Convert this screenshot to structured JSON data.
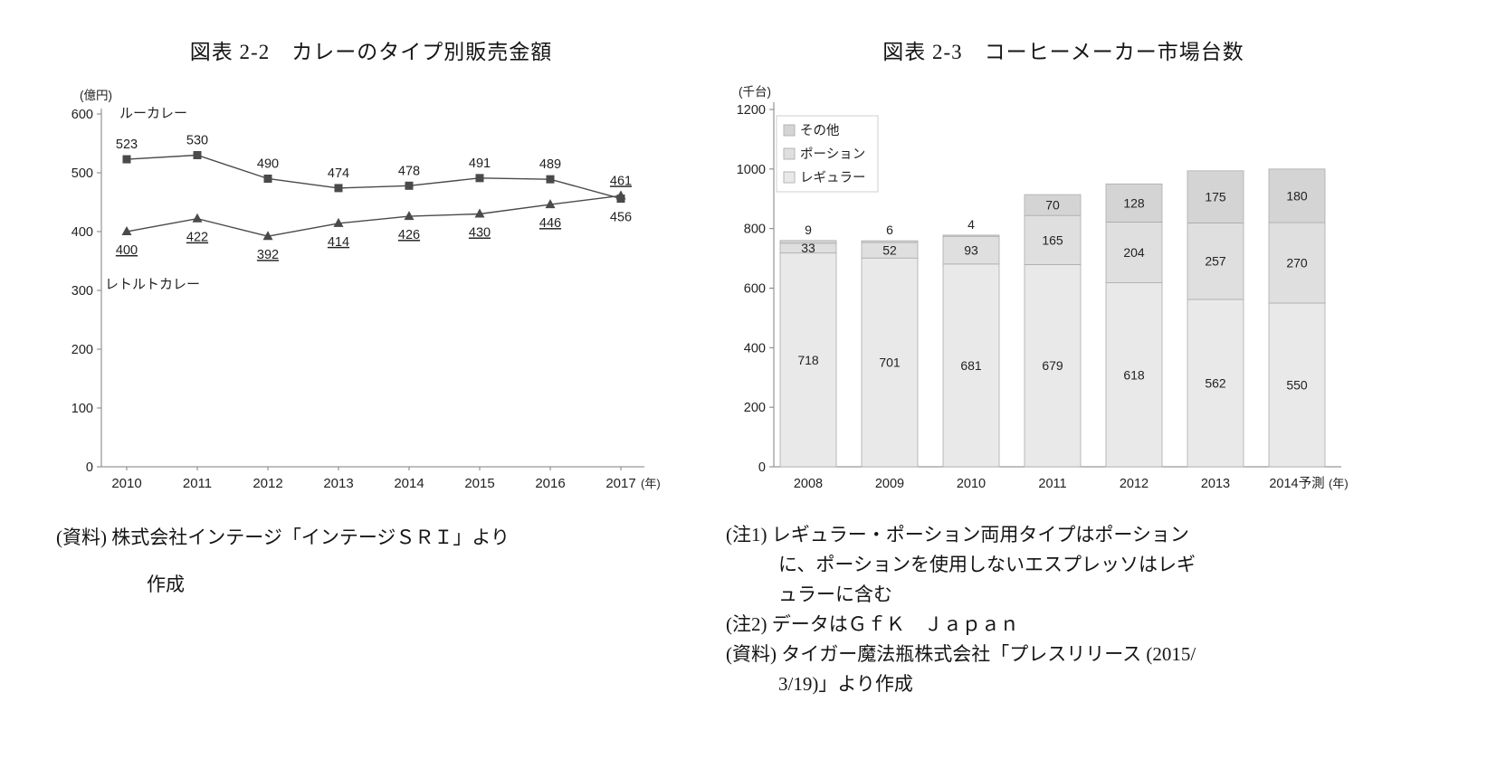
{
  "chart_data": [
    {
      "type": "line",
      "title": "図表 2-2　カレーのタイプ別販売金額",
      "ylabel": "(億円)",
      "xlabel": "(年)",
      "ylim": [
        0,
        600
      ],
      "yticks": [
        0,
        100,
        200,
        300,
        400,
        500,
        600
      ],
      "x": [
        "2010",
        "2011",
        "2012",
        "2013",
        "2014",
        "2015",
        "2016",
        "2017"
      ],
      "series": [
        {
          "name": "ルーカレー",
          "marker": "square",
          "values": [
            523,
            530,
            490,
            474,
            478,
            491,
            489,
            456
          ],
          "label_side": "above",
          "last_label_side": "below",
          "underline_labels": false,
          "name_pos": [
            72,
            44
          ]
        },
        {
          "name": "レトルトカレー",
          "marker": "triangle",
          "values": [
            400,
            422,
            392,
            414,
            426,
            430,
            446,
            461
          ],
          "label_side": "below",
          "last_label_side": "above",
          "underline_labels": true,
          "name_pos": [
            56,
            233
          ]
        }
      ],
      "line_color": "#4a4a4a",
      "axis_color": "#7f7f7f",
      "legend_position": "inline"
    },
    {
      "type": "stacked-bar",
      "title": "図表 2-3　コーヒーメーカー市場台数",
      "ylabel": "(千台)",
      "xlabel": "(年)",
      "ylim": [
        0,
        1200
      ],
      "yticks": [
        0,
        200,
        400,
        600,
        800,
        1000,
        1200
      ],
      "categories": [
        "2008",
        "2009",
        "2010",
        "2011",
        "2012",
        "2013",
        "2014予測"
      ],
      "series": [
        {
          "name": "レギュラー",
          "values": [
            718,
            701,
            681,
            679,
            618,
            562,
            550
          ],
          "color": "#e9e9e9"
        },
        {
          "name": "ポーション",
          "values": [
            33,
            52,
            93,
            165,
            204,
            257,
            270
          ],
          "color": "#dfdfdf"
        },
        {
          "name": "その他",
          "values": [
            9,
            6,
            4,
            70,
            128,
            175,
            180
          ],
          "color": "#d4d4d4"
        }
      ],
      "legend_order": [
        "その他",
        "ポーション",
        "レギュラー"
      ],
      "bar_border": "#ababab",
      "axis_color": "#7f7f7f",
      "legend_position": "top-left"
    }
  ],
  "left_source": [
    "(資料) 株式会社インテージ「インテージＳＲＩ」より",
    "作成"
  ],
  "right_notes": [
    "(注1) レギュラー・ポーション両用タイプはポーション",
    "に、ポーションを使用しないエスプレッソはレギ",
    "ュラーに含む",
    "(注2) データはＧｆＫ　Ｊａｐａｎ",
    "(資料) タイガー魔法瓶株式会社「プレスリリース (2015/",
    "3/19)」より作成"
  ]
}
